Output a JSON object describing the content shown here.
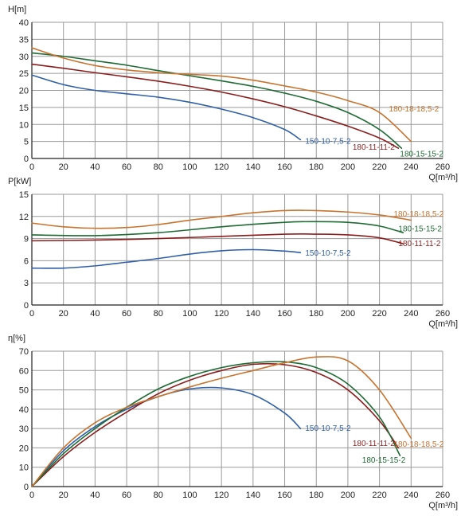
{
  "colors": {
    "grid": "#9a9a9a",
    "axis": "#222222",
    "text": "#222222",
    "series": {
      "150-10-7,5-2": "#2f5fa8",
      "180-11-11-2": "#8c1d1d",
      "180-15-15-2": "#1f6b34",
      "180-18-18,5-2": "#c8732e"
    }
  },
  "chart_data": [
    {
      "id": "head",
      "type": "line",
      "ylabel": "H[m]",
      "xlabel": "Q[m³/h]",
      "xlim": [
        0,
        260
      ],
      "ylim": [
        0,
        40
      ],
      "xticks": [
        "0",
        "20",
        "40",
        "60",
        "80",
        "100",
        "120",
        "140",
        "160",
        "180",
        "200",
        "220",
        "240",
        "260"
      ],
      "yticks": [
        "0",
        "5",
        "10",
        "15",
        "20",
        "25",
        "30",
        "35",
        "40"
      ],
      "grid": true,
      "series": [
        {
          "name": "150-10-7,5-2",
          "color_key": "150-10-7,5-2",
          "points": [
            [
              0,
              24.5
            ],
            [
              20,
              21.7
            ],
            [
              40,
              20
            ],
            [
              60,
              19
            ],
            [
              80,
              18
            ],
            [
              100,
              16.5
            ],
            [
              120,
              14.5
            ],
            [
              140,
              12
            ],
            [
              160,
              8.5
            ],
            [
              170,
              5.5
            ]
          ]
        },
        {
          "name": "180-11-11-2",
          "color_key": "180-11-11-2",
          "points": [
            [
              0,
              27.7
            ],
            [
              20,
              26.5
            ],
            [
              40,
              25.2
            ],
            [
              60,
              24
            ],
            [
              80,
              22.7
            ],
            [
              100,
              21.2
            ],
            [
              120,
              19.5
            ],
            [
              140,
              17.5
            ],
            [
              160,
              15.2
            ],
            [
              180,
              12.5
            ],
            [
              200,
              9.5
            ],
            [
              220,
              6
            ],
            [
              232,
              3
            ]
          ]
        },
        {
          "name": "180-15-15-2",
          "color_key": "180-15-15-2",
          "points": [
            [
              0,
              31
            ],
            [
              20,
              30
            ],
            [
              40,
              28.7
            ],
            [
              60,
              27.4
            ],
            [
              80,
              25.8
            ],
            [
              100,
              24.3
            ],
            [
              120,
              22.8
            ],
            [
              140,
              21.2
            ],
            [
              160,
              19.2
            ],
            [
              180,
              16.8
            ],
            [
              200,
              13.5
            ],
            [
              220,
              8.5
            ],
            [
              234,
              3
            ]
          ]
        },
        {
          "name": "180-18-18,5-2",
          "color_key": "180-18-18,5-2",
          "points": [
            [
              0,
              32.5
            ],
            [
              20,
              29.5
            ],
            [
              40,
              27.3
            ],
            [
              60,
              26
            ],
            [
              80,
              25.2
            ],
            [
              100,
              24.7
            ],
            [
              120,
              24.2
            ],
            [
              140,
              23
            ],
            [
              160,
              21.3
            ],
            [
              180,
              19.5
            ],
            [
              200,
              17
            ],
            [
              220,
              13.5
            ],
            [
              240,
              5
            ]
          ]
        }
      ],
      "annotations": [
        {
          "text": "180-18-18,5-2",
          "x": 226,
          "y": 14.5,
          "color_key": "180-18-18,5-2"
        },
        {
          "text": "150-10-7,5-2",
          "x": 173,
          "y": 5,
          "color_key": "150-10-7,5-2"
        },
        {
          "text": "180-11-11-2",
          "x": 203,
          "y": 3.3,
          "color_key": "180-11-11-2"
        },
        {
          "text": "180-15-15-2",
          "x": 233,
          "y": 1.3,
          "color_key": "180-15-15-2"
        }
      ]
    },
    {
      "id": "power",
      "type": "line",
      "ylabel": "P[kW]",
      "xlabel": "Q[m³/h]",
      "xlim": [
        0,
        260
      ],
      "ylim": [
        0,
        15
      ],
      "xticks": [
        "0",
        "20",
        "40",
        "60",
        "80",
        "100",
        "120",
        "140",
        "160",
        "180",
        "200",
        "220",
        "240",
        "260"
      ],
      "yticks": [
        "0",
        "3",
        "6",
        "9",
        "12",
        "15"
      ],
      "grid": true,
      "series": [
        {
          "name": "150-10-7,5-2",
          "color_key": "150-10-7,5-2",
          "points": [
            [
              0,
              5
            ],
            [
              20,
              5
            ],
            [
              40,
              5.3
            ],
            [
              60,
              5.8
            ],
            [
              80,
              6.3
            ],
            [
              100,
              6.9
            ],
            [
              120,
              7.35
            ],
            [
              140,
              7.5
            ],
            [
              160,
              7.3
            ],
            [
              170,
              7.1
            ]
          ]
        },
        {
          "name": "180-11-11-2",
          "color_key": "180-11-11-2",
          "points": [
            [
              0,
              8.7
            ],
            [
              40,
              8.8
            ],
            [
              80,
              9
            ],
            [
              120,
              9.3
            ],
            [
              160,
              9.6
            ],
            [
              180,
              9.6
            ],
            [
              200,
              9.5
            ],
            [
              220,
              9.1
            ],
            [
              235,
              8.3
            ]
          ]
        },
        {
          "name": "180-15-15-2",
          "color_key": "180-15-15-2",
          "points": [
            [
              0,
              9.5
            ],
            [
              40,
              9.4
            ],
            [
              80,
              9.8
            ],
            [
              120,
              10.6
            ],
            [
              160,
              11.2
            ],
            [
              180,
              11.3
            ],
            [
              200,
              11.2
            ],
            [
              220,
              10.7
            ],
            [
              235,
              9.8
            ]
          ]
        },
        {
          "name": "180-18-18,5-2",
          "color_key": "180-18-18,5-2",
          "points": [
            [
              0,
              11.1
            ],
            [
              20,
              10.6
            ],
            [
              40,
              10.4
            ],
            [
              60,
              10.5
            ],
            [
              80,
              10.9
            ],
            [
              100,
              11.5
            ],
            [
              120,
              12
            ],
            [
              140,
              12.5
            ],
            [
              160,
              12.8
            ],
            [
              180,
              12.8
            ],
            [
              200,
              12.6
            ],
            [
              220,
              12.2
            ],
            [
              240,
              11.5
            ]
          ]
        }
      ],
      "annotations": [
        {
          "text": "180-18-18,5-2",
          "x": 229,
          "y": 12.3,
          "color_key": "180-18-18,5-2"
        },
        {
          "text": "180-15-15-2",
          "x": 232,
          "y": 10.3,
          "color_key": "180-15-15-2"
        },
        {
          "text": "180-11-11-2",
          "x": 232,
          "y": 8.3,
          "color_key": "180-11-11-2"
        },
        {
          "text": "150-10-7,5-2",
          "x": 173,
          "y": 7,
          "color_key": "150-10-7,5-2"
        }
      ]
    },
    {
      "id": "efficiency",
      "type": "line",
      "ylabel": "η[%]",
      "xlabel": "Q[m³/h]",
      "xlim": [
        0,
        260
      ],
      "ylim": [
        0,
        70
      ],
      "xticks": [
        "0",
        "20",
        "40",
        "60",
        "80",
        "100",
        "120",
        "140",
        "160",
        "180",
        "200",
        "220",
        "240",
        "260"
      ],
      "yticks": [
        "0",
        "10",
        "20",
        "30",
        "40",
        "50",
        "60",
        "70"
      ],
      "grid": true,
      "series": [
        {
          "name": "150-10-7,5-2",
          "color_key": "150-10-7,5-2",
          "points": [
            [
              0,
              0
            ],
            [
              20,
              18.5
            ],
            [
              40,
              31
            ],
            [
              60,
              40
            ],
            [
              80,
              46.5
            ],
            [
              100,
              50.5
            ],
            [
              120,
              51
            ],
            [
              140,
              47.5
            ],
            [
              160,
              38
            ],
            [
              170,
              30
            ]
          ]
        },
        {
          "name": "180-11-11-2",
          "color_key": "180-11-11-2",
          "points": [
            [
              0,
              0
            ],
            [
              20,
              15.5
            ],
            [
              40,
              28
            ],
            [
              60,
              38.5
            ],
            [
              80,
              48
            ],
            [
              100,
              55
            ],
            [
              120,
              60
            ],
            [
              140,
              63.2
            ],
            [
              160,
              63
            ],
            [
              180,
              59
            ],
            [
              200,
              50
            ],
            [
              220,
              34
            ],
            [
              232,
              20
            ]
          ]
        },
        {
          "name": "180-15-15-2",
          "color_key": "180-15-15-2",
          "points": [
            [
              0,
              0
            ],
            [
              20,
              17
            ],
            [
              40,
              30
            ],
            [
              60,
              41
            ],
            [
              80,
              50.5
            ],
            [
              100,
              57
            ],
            [
              120,
              61.5
            ],
            [
              140,
              64
            ],
            [
              160,
              64.5
            ],
            [
              180,
              61.5
            ],
            [
              200,
              53
            ],
            [
              220,
              36
            ],
            [
              233,
              16
            ]
          ]
        },
        {
          "name": "180-18-18,5-2",
          "color_key": "180-18-18,5-2",
          "points": [
            [
              0,
              0
            ],
            [
              20,
              20
            ],
            [
              40,
              33
            ],
            [
              60,
              41
            ],
            [
              80,
              46.5
            ],
            [
              100,
              51.5
            ],
            [
              120,
              56
            ],
            [
              140,
              60
            ],
            [
              160,
              64
            ],
            [
              180,
              67
            ],
            [
              200,
              65
            ],
            [
              220,
              50
            ],
            [
              240,
              25
            ]
          ]
        }
      ],
      "annotations": [
        {
          "text": "150-10-7,5-2",
          "x": 173,
          "y": 30,
          "color_key": "150-10-7,5-2"
        },
        {
          "text": "180-11-11-2",
          "x": 203,
          "y": 22.3,
          "color_key": "180-11-11-2"
        },
        {
          "text": "180-18-18,5-2",
          "x": 229,
          "y": 21.8,
          "color_key": "180-18-18,5-2"
        },
        {
          "text": "180-15-15-2",
          "x": 209,
          "y": 13.6,
          "color_key": "180-15-15-2"
        }
      ]
    }
  ]
}
